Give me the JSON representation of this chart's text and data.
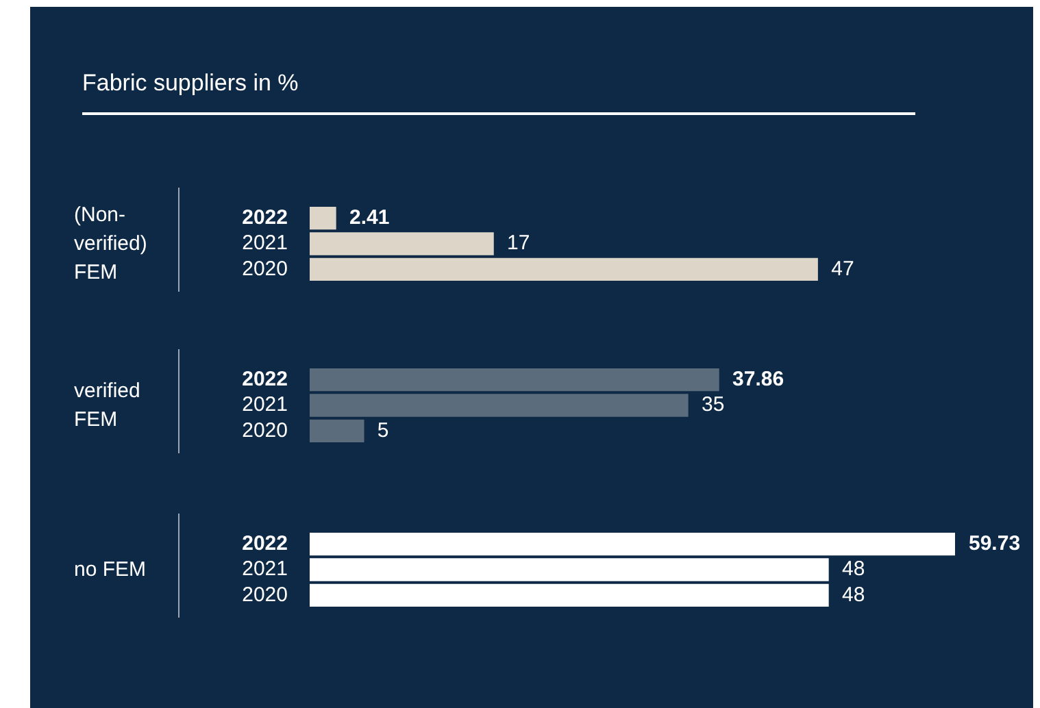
{
  "chart_data": [
    {
      "type": "bar",
      "title": "Fabric suppliers in %",
      "ylabel": "(Non-verified) FEM",
      "orientation": "horizontal",
      "categories": [
        "2022",
        "2021",
        "2020"
      ],
      "values": [
        2.41,
        17,
        47
      ],
      "color": "#ddd5c8",
      "data_labels": true,
      "tick_labels": "y"
    },
    {
      "type": "bar",
      "ylabel": "verified FEM",
      "orientation": "horizontal",
      "categories": [
        "2022",
        "2021",
        "2020"
      ],
      "values": [
        37.86,
        35,
        5
      ],
      "color": "#5b6c7d",
      "data_labels": true,
      "tick_labels": "y"
    },
    {
      "type": "bar",
      "ylabel": "no FEM",
      "orientation": "horizontal",
      "categories": [
        "2022",
        "2021",
        "2020"
      ],
      "values": [
        59.73,
        48,
        48
      ],
      "color": "#ffffff",
      "data_labels": true,
      "tick_labels": "y"
    }
  ]
}
